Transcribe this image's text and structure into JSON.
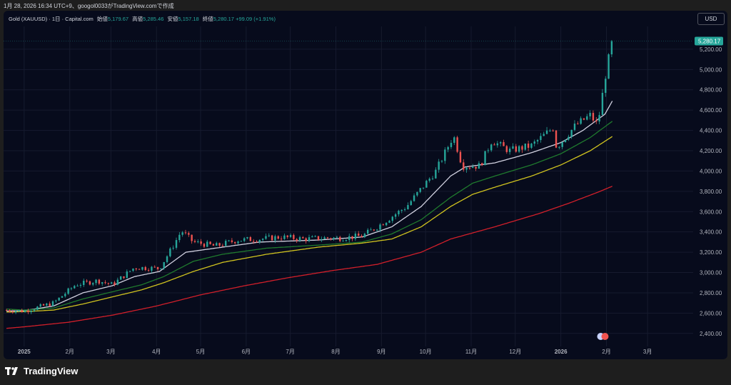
{
  "caption": "1月 28, 2026 16:34 UTC+9、googol0033がTradingView.comで作成",
  "legend": {
    "symbol": "Gold (XAUUSD) · 1日 · Capital.com",
    "open_label": "始値",
    "open": "5,179.67",
    "high_label": "高値",
    "high": "5,285.46",
    "low_label": "安値",
    "low": "5,157.18",
    "close_label": "終値",
    "close": "5,280.17",
    "change": "+99.09 (+1.91%)"
  },
  "currency": "USD",
  "brand": "TradingView",
  "colors": {
    "background": "#070b1c",
    "up": "#26a69a",
    "down": "#ef5350",
    "ma_short": "#d1d1e0",
    "ma_mid": "#1f7a2e",
    "ma_long": "#cfc21f",
    "ma_very_long": "#d11f2a"
  },
  "chart_data": {
    "type": "candlestick",
    "price_label": "5,280.17",
    "ylim": [
      2300,
      5340
    ],
    "y_ticks": [
      2400,
      2600,
      2800,
      3000,
      3200,
      3400,
      3600,
      3800,
      4000,
      4200,
      4400,
      4600,
      4800,
      5000,
      5200
    ],
    "y_tick_labels": [
      "2,400.00",
      "2,600.00",
      "2,800.00",
      "3,000.00",
      "3,200.00",
      "3,400.00",
      "3,600.00",
      "3,800.00",
      "4,000.00",
      "4,200.00",
      "4,400.00",
      "4,600.00",
      "4,800.00",
      "5,000.00",
      "5,200.00"
    ],
    "x_ticks": [
      {
        "label": "2025",
        "day": 0,
        "bold": true
      },
      {
        "label": "2月",
        "day": 31,
        "bold": false
      },
      {
        "label": "3月",
        "day": 59,
        "bold": false
      },
      {
        "label": "4月",
        "day": 90,
        "bold": false
      },
      {
        "label": "5月",
        "day": 120,
        "bold": false
      },
      {
        "label": "6月",
        "day": 151,
        "bold": false
      },
      {
        "label": "7月",
        "day": 181,
        "bold": false
      },
      {
        "label": "8月",
        "day": 212,
        "bold": false
      },
      {
        "label": "9月",
        "day": 243,
        "bold": false
      },
      {
        "label": "10月",
        "day": 273,
        "bold": false
      },
      {
        "label": "11月",
        "day": 304,
        "bold": false
      },
      {
        "label": "12月",
        "day": 334,
        "bold": false
      },
      {
        "label": "2026",
        "day": 365,
        "bold": true
      },
      {
        "label": "2月",
        "day": 396,
        "bold": false
      },
      {
        "label": "3月",
        "day": 424,
        "bold": false
      }
    ],
    "x_range_days": [
      -14,
      455
    ],
    "price_path": [
      [
        -12,
        2630
      ],
      [
        0,
        2620
      ],
      [
        20,
        2700
      ],
      [
        35,
        2880
      ],
      [
        50,
        2920
      ],
      [
        60,
        2880
      ],
      [
        75,
        3050
      ],
      [
        92,
        3040
      ],
      [
        100,
        3230
      ],
      [
        107,
        3410
      ],
      [
        115,
        3300
      ],
      [
        130,
        3260
      ],
      [
        145,
        3320
      ],
      [
        160,
        3330
      ],
      [
        175,
        3350
      ],
      [
        190,
        3330
      ],
      [
        205,
        3340
      ],
      [
        215,
        3340
      ],
      [
        230,
        3360
      ],
      [
        240,
        3450
      ],
      [
        260,
        3650
      ],
      [
        280,
        4000
      ],
      [
        292,
        4350
      ],
      [
        298,
        4050
      ],
      [
        310,
        4050
      ],
      [
        318,
        4300
      ],
      [
        330,
        4200
      ],
      [
        345,
        4250
      ],
      [
        360,
        4430
      ],
      [
        362,
        4230
      ],
      [
        375,
        4450
      ],
      [
        385,
        4550
      ],
      [
        390,
        4450
      ],
      [
        396,
        5000
      ],
      [
        400,
        5280
      ]
    ],
    "moving_averages": [
      {
        "values": [
          [
            -12,
            2620
          ],
          [
            0,
            2625
          ],
          [
            20,
            2670
          ],
          [
            40,
            2800
          ],
          [
            60,
            2870
          ],
          [
            75,
            2960
          ],
          [
            92,
            3010
          ],
          [
            110,
            3200
          ],
          [
            130,
            3240
          ],
          [
            160,
            3300
          ],
          [
            200,
            3320
          ],
          [
            230,
            3350
          ],
          [
            250,
            3450
          ],
          [
            270,
            3650
          ],
          [
            290,
            3950
          ],
          [
            300,
            4040
          ],
          [
            320,
            4080
          ],
          [
            345,
            4180
          ],
          [
            365,
            4280
          ],
          [
            380,
            4400
          ],
          [
            395,
            4560
          ],
          [
            400,
            4690
          ]
        ]
      },
      {
        "values": [
          [
            -12,
            2640
          ],
          [
            0,
            2630
          ],
          [
            20,
            2650
          ],
          [
            40,
            2740
          ],
          [
            60,
            2810
          ],
          [
            80,
            2880
          ],
          [
            95,
            2960
          ],
          [
            115,
            3110
          ],
          [
            135,
            3180
          ],
          [
            165,
            3240
          ],
          [
            200,
            3270
          ],
          [
            230,
            3300
          ],
          [
            250,
            3380
          ],
          [
            270,
            3520
          ],
          [
            290,
            3740
          ],
          [
            305,
            3880
          ],
          [
            320,
            3950
          ],
          [
            345,
            4060
          ],
          [
            365,
            4170
          ],
          [
            385,
            4330
          ],
          [
            400,
            4490
          ]
        ]
      },
      {
        "values": [
          [
            -12,
            2610
          ],
          [
            0,
            2615
          ],
          [
            20,
            2630
          ],
          [
            40,
            2690
          ],
          [
            60,
            2760
          ],
          [
            80,
            2830
          ],
          [
            95,
            2900
          ],
          [
            115,
            3010
          ],
          [
            135,
            3100
          ],
          [
            165,
            3180
          ],
          [
            200,
            3250
          ],
          [
            230,
            3290
          ],
          [
            250,
            3330
          ],
          [
            270,
            3450
          ],
          [
            290,
            3650
          ],
          [
            305,
            3770
          ],
          [
            320,
            3840
          ],
          [
            345,
            3950
          ],
          [
            365,
            4060
          ],
          [
            385,
            4200
          ],
          [
            400,
            4340
          ]
        ]
      },
      {
        "values": [
          [
            -12,
            2450
          ],
          [
            0,
            2465
          ],
          [
            30,
            2510
          ],
          [
            60,
            2580
          ],
          [
            90,
            2670
          ],
          [
            120,
            2780
          ],
          [
            150,
            2870
          ],
          [
            180,
            2950
          ],
          [
            210,
            3020
          ],
          [
            240,
            3080
          ],
          [
            270,
            3200
          ],
          [
            290,
            3330
          ],
          [
            320,
            3450
          ],
          [
            350,
            3580
          ],
          [
            370,
            3680
          ],
          [
            390,
            3790
          ],
          [
            400,
            3850
          ]
        ]
      }
    ]
  }
}
